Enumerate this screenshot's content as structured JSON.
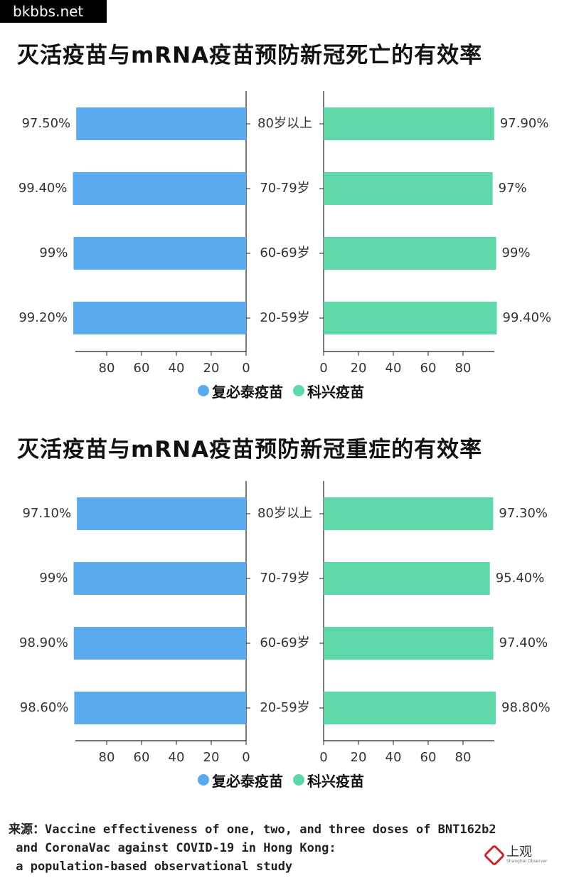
{
  "watermark": "bkbbs.net",
  "colors": {
    "left": "#5aaaf0",
    "right": "#5ed8a8"
  },
  "legend": {
    "left_label": "复必泰疫苗",
    "right_label": "科兴疫苗"
  },
  "chart_data": [
    {
      "type": "bar",
      "title": "灭活疫苗与mRNA疫苗预防新冠死亡的有效率",
      "categories": [
        "80岁以上",
        "70-79岁",
        "60-69岁",
        "20-59岁"
      ],
      "series": [
        {
          "name": "复必泰疫苗",
          "values": [
            97.5,
            99.4,
            99,
            99.2
          ],
          "labels": [
            "97.50%",
            "99.40%",
            "99%",
            "99.20%"
          ]
        },
        {
          "name": "科兴疫苗",
          "values": [
            97.9,
            97,
            99,
            99.4
          ],
          "labels": [
            "97.90%",
            "97%",
            "99%",
            "99.40%"
          ]
        }
      ],
      "left_ticks": [
        "80",
        "60",
        "40",
        "20",
        "0"
      ],
      "right_ticks": [
        "0",
        "20",
        "40",
        "60",
        "80"
      ],
      "xlim": [
        0,
        100
      ]
    },
    {
      "type": "bar",
      "title": "灭活疫苗与mRNA疫苗预防新冠重症的有效率",
      "categories": [
        "80岁以上",
        "70-79岁",
        "60-69岁",
        "20-59岁"
      ],
      "series": [
        {
          "name": "复必泰疫苗",
          "values": [
            97.1,
            99,
            98.9,
            98.6
          ],
          "labels": [
            "97.10%",
            "99%",
            "98.90%",
            "98.60%"
          ]
        },
        {
          "name": "科兴疫苗",
          "values": [
            97.3,
            95.4,
            97.4,
            98.8
          ],
          "labels": [
            "97.30%",
            "95.40%",
            "97.40%",
            "98.80%"
          ]
        }
      ],
      "left_ticks": [
        "80",
        "60",
        "40",
        "20",
        "0"
      ],
      "right_ticks": [
        "0",
        "20",
        "40",
        "60",
        "80"
      ],
      "xlim": [
        0,
        100
      ]
    }
  ],
  "source": {
    "line1": "来源：Vaccine effectiveness of one, two, and three doses of BNT162b2",
    "line2": " and CoronaVac against COVID-19 in Hong Kong:",
    "line3": " a population-based observational study"
  },
  "logo": {
    "name": "上观",
    "sub": "Shanghai Observer"
  }
}
